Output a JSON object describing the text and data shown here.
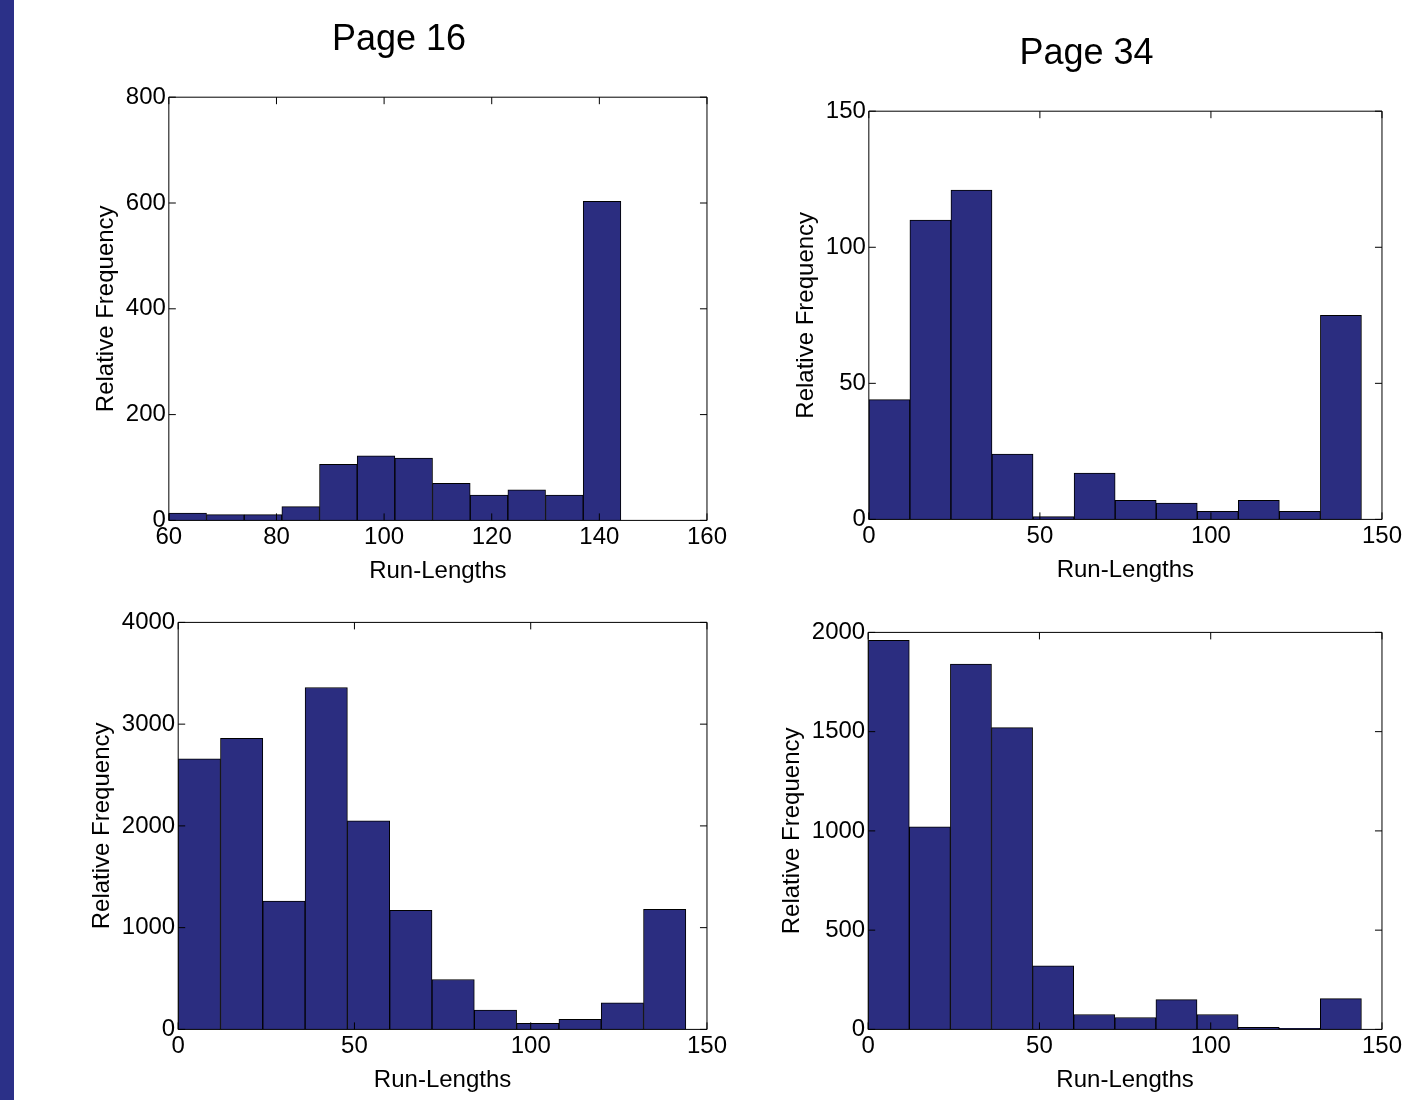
{
  "chart_data": [
    {
      "type": "histogram",
      "title": "Page 16",
      "xlabel": "Run-Lengths",
      "ylabel": "Relative Frequency",
      "bins": [
        60,
        67,
        74,
        81,
        88,
        95,
        102,
        109,
        116,
        123,
        130,
        137,
        144
      ],
      "values": [
        14,
        11,
        11,
        26,
        106,
        122,
        118,
        70,
        48,
        58,
        48,
        603
      ],
      "color": "#2b2d80",
      "xlim": [
        60,
        160
      ],
      "ylim": [
        0,
        800
      ],
      "xticks": [
        60,
        80,
        100,
        120,
        140,
        160
      ],
      "yticks": [
        0,
        200,
        400,
        600,
        800
      ]
    },
    {
      "type": "histogram",
      "title": "Page 34",
      "xlabel": "Run-Lengths",
      "ylabel": "Relative Frequency",
      "bins": [
        0,
        12,
        24,
        36,
        48,
        60,
        72,
        84,
        96,
        108,
        120,
        132,
        144
      ],
      "values": [
        44,
        110,
        121,
        24,
        1,
        17,
        7,
        6,
        3,
        7,
        3,
        75
      ],
      "color": "#2b2d80",
      "xlim": [
        0,
        150
      ],
      "ylim": [
        0,
        150
      ],
      "xticks": [
        0,
        50,
        100,
        150
      ],
      "yticks": [
        0,
        50,
        100,
        150
      ]
    },
    {
      "type": "histogram",
      "xlabel": "Run-Lengths",
      "ylabel": "Relative Frequency",
      "bins": [
        0,
        12,
        24,
        36,
        48,
        60,
        72,
        84,
        96,
        108,
        120,
        132,
        144
      ],
      "values": [
        2660,
        2860,
        1260,
        3360,
        2050,
        1170,
        490,
        190,
        60,
        100,
        260,
        1180
      ],
      "color": "#2b2d80",
      "xlim": [
        0,
        150
      ],
      "ylim": [
        0,
        4000
      ],
      "xticks": [
        0,
        50,
        100,
        150
      ],
      "yticks": [
        0,
        1000,
        2000,
        3000,
        4000
      ]
    },
    {
      "type": "histogram",
      "xlabel": "Run-Lengths",
      "ylabel": "Relative Frequency",
      "bins": [
        0,
        12,
        24,
        36,
        48,
        60,
        72,
        84,
        96,
        108,
        120,
        132,
        144
      ],
      "values": [
        1960,
        1020,
        1840,
        1520,
        320,
        75,
        60,
        150,
        75,
        10,
        5,
        155
      ],
      "color": "#2b2d80",
      "xlim": [
        0,
        150
      ],
      "ylim": [
        0,
        2000
      ],
      "xticks": [
        0,
        50,
        100,
        150
      ],
      "yticks": [
        0,
        500,
        1000,
        1500,
        2000
      ]
    }
  ]
}
